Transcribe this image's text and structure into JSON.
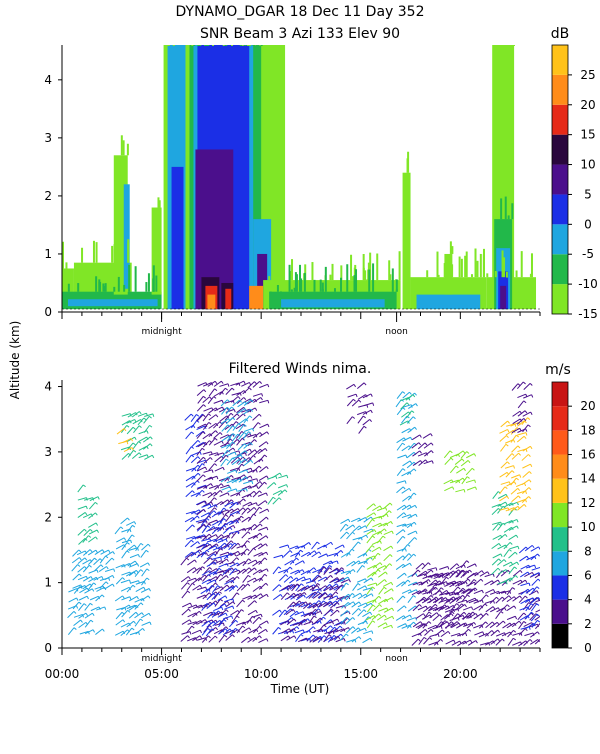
{
  "header": {
    "line1": "DYNAMO_DGAR  18 Dec 11 Day 352",
    "line2": "SNR Beam 3 Azi 133 Elev 90"
  },
  "y_axis_label": "Altitude (km)",
  "x_axis_label": "Time (UT)",
  "chart_data": [
    {
      "type": "heatmap",
      "title": "SNR Beam 3 Azi 133 Elev 90",
      "xlabel": "",
      "ylabel": "Altitude (km)",
      "xlim": [
        0,
        24
      ],
      "ylim": [
        0,
        4.6
      ],
      "y_ticks": [
        "0",
        "1",
        "2",
        "3",
        "4"
      ],
      "x_markers": [
        "midnight",
        "noon"
      ],
      "x_marker_positions": [
        5,
        16.8
      ],
      "colorbar": {
        "unit": "dB",
        "ticks": [
          "-15",
          "-10",
          "-5",
          "0",
          "5",
          "10",
          "15",
          "20",
          "25"
        ],
        "levels": [
          {
            "from": -15,
            "to": -10,
            "color": "#80e626"
          },
          {
            "from": -10,
            "to": -5,
            "color": "#22b84a"
          },
          {
            "from": -5,
            "to": 0,
            "color": "#1fa6e0"
          },
          {
            "from": 0,
            "to": 5,
            "color": "#1b2fe6"
          },
          {
            "from": 5,
            "to": 10,
            "color": "#4b0f8c"
          },
          {
            "from": 10,
            "to": 15,
            "color": "#2a073d"
          },
          {
            "from": 15,
            "to": 20,
            "color": "#e62a18"
          },
          {
            "from": 20,
            "to": 25,
            "color": "#ff8c1a"
          },
          {
            "from": 25,
            "to": 30,
            "color": "#ffc21a"
          }
        ]
      },
      "regions": [
        {
          "t0": 0.0,
          "t1": 0.6,
          "h0": 0.05,
          "h1": 0.75,
          "level": 0
        },
        {
          "t0": 0.6,
          "t1": 3.5,
          "h0": 0.05,
          "h1": 0.85,
          "level": 0
        },
        {
          "t0": 0.0,
          "t1": 5.0,
          "h0": 0.05,
          "h1": 0.35,
          "level": 1
        },
        {
          "t0": 0.3,
          "t1": 4.8,
          "h0": 0.1,
          "h1": 0.22,
          "level": 2
        },
        {
          "t0": 2.6,
          "t1": 3.3,
          "h0": 0.3,
          "h1": 2.7,
          "level": 0
        },
        {
          "t0": 3.1,
          "t1": 3.4,
          "h0": 0.4,
          "h1": 2.2,
          "level": 2
        },
        {
          "t0": 4.5,
          "t1": 5.0,
          "h0": 0.3,
          "h1": 1.8,
          "level": 0
        },
        {
          "t0": 5.1,
          "t1": 6.5,
          "h0": 0.05,
          "h1": 4.6,
          "level": 0
        },
        {
          "t0": 5.3,
          "t1": 6.3,
          "h0": 0.05,
          "h1": 4.6,
          "level": 2
        },
        {
          "t0": 5.5,
          "t1": 6.1,
          "h0": 0.05,
          "h1": 2.5,
          "level": 3
        },
        {
          "t0": 6.2,
          "t1": 11.2,
          "h0": 0.05,
          "h1": 4.6,
          "level": 0
        },
        {
          "t0": 6.4,
          "t1": 10.0,
          "h0": 0.05,
          "h1": 4.6,
          "level": 1
        },
        {
          "t0": 6.6,
          "t1": 9.6,
          "h0": 0.05,
          "h1": 4.6,
          "level": 2
        },
        {
          "t0": 6.8,
          "t1": 9.4,
          "h0": 0.05,
          "h1": 4.6,
          "level": 3
        },
        {
          "t0": 6.7,
          "t1": 8.6,
          "h0": 0.05,
          "h1": 2.8,
          "level": 4
        },
        {
          "t0": 9.6,
          "t1": 10.5,
          "h0": 0.05,
          "h1": 1.6,
          "level": 2
        },
        {
          "t0": 9.8,
          "t1": 10.3,
          "h0": 0.05,
          "h1": 1.0,
          "level": 4
        },
        {
          "t0": 7.0,
          "t1": 7.9,
          "h0": 0.05,
          "h1": 0.6,
          "level": 5
        },
        {
          "t0": 7.2,
          "t1": 7.8,
          "h0": 0.05,
          "h1": 0.45,
          "level": 6
        },
        {
          "t0": 7.3,
          "t1": 7.7,
          "h0": 0.05,
          "h1": 0.3,
          "level": 7
        },
        {
          "t0": 8.0,
          "t1": 8.6,
          "h0": 0.05,
          "h1": 0.5,
          "level": 5
        },
        {
          "t0": 8.2,
          "t1": 8.5,
          "h0": 0.05,
          "h1": 0.4,
          "level": 6
        },
        {
          "t0": 9.4,
          "t1": 10.1,
          "h0": 0.05,
          "h1": 0.45,
          "level": 7
        },
        {
          "t0": 10.1,
          "t1": 17.0,
          "h0": 0.05,
          "h1": 0.55,
          "level": 0
        },
        {
          "t0": 10.4,
          "t1": 16.8,
          "h0": 0.05,
          "h1": 0.35,
          "level": 1
        },
        {
          "t0": 11.0,
          "t1": 16.2,
          "h0": 0.08,
          "h1": 0.22,
          "level": 2
        },
        {
          "t0": 17.1,
          "t1": 17.5,
          "h0": 0.05,
          "h1": 2.4,
          "level": 0
        },
        {
          "t0": 17.5,
          "t1": 21.3,
          "h0": 0.05,
          "h1": 0.6,
          "level": 0
        },
        {
          "t0": 17.8,
          "t1": 21.0,
          "h0": 0.05,
          "h1": 0.3,
          "level": 2
        },
        {
          "t0": 19.2,
          "t1": 19.6,
          "h0": 0.3,
          "h1": 1.0,
          "level": 0
        },
        {
          "t0": 21.3,
          "t1": 23.8,
          "h0": 0.05,
          "h1": 0.6,
          "level": 0
        },
        {
          "t0": 21.6,
          "t1": 22.7,
          "h0": 0.05,
          "h1": 4.6,
          "level": 0
        },
        {
          "t0": 21.7,
          "t1": 22.6,
          "h0": 0.05,
          "h1": 1.6,
          "level": 1
        },
        {
          "t0": 21.8,
          "t1": 22.5,
          "h0": 0.05,
          "h1": 1.1,
          "level": 2
        },
        {
          "t0": 21.9,
          "t1": 22.4,
          "h0": 0.05,
          "h1": 0.7,
          "level": 3
        },
        {
          "t0": 22.0,
          "t1": 22.3,
          "h0": 0.05,
          "h1": 0.45,
          "level": 4
        }
      ]
    },
    {
      "type": "scatter",
      "title": "Filtered Winds nima.",
      "xlabel": "Time (UT)",
      "ylabel": "Altitude (km)",
      "xlim": [
        0,
        24
      ],
      "ylim": [
        0,
        4.1
      ],
      "x_ticks": [
        "00:00",
        "05:00",
        "10:00",
        "15:00",
        "20:00"
      ],
      "x_tick_values": [
        0,
        5,
        10,
        15,
        20
      ],
      "y_ticks": [
        "0",
        "1",
        "2",
        "3",
        "4"
      ],
      "x_markers": [
        "midnight",
        "noon"
      ],
      "x_marker_positions": [
        5,
        16.8
      ],
      "colorbar": {
        "unit": "m/s",
        "ticks": [
          "0",
          "2",
          "4",
          "6",
          "8",
          "10",
          "12",
          "14",
          "16",
          "18",
          "20"
        ],
        "levels": [
          {
            "from": 0,
            "to": 2,
            "color": "#000000"
          },
          {
            "from": 2,
            "to": 4,
            "color": "#4a0f8c"
          },
          {
            "from": 4,
            "to": 6,
            "color": "#1b2fe6"
          },
          {
            "from": 6,
            "to": 8,
            "color": "#1fa6e0"
          },
          {
            "from": 8,
            "to": 10,
            "color": "#22c08a"
          },
          {
            "from": 10,
            "to": 12,
            "color": "#80e626"
          },
          {
            "from": 12,
            "to": 14,
            "color": "#ffc21a"
          },
          {
            "from": 14,
            "to": 16,
            "color": "#ff8c1a"
          },
          {
            "from": 16,
            "to": 18,
            "color": "#ff5a1a"
          },
          {
            "from": 18,
            "to": 20,
            "color": "#e62a18"
          },
          {
            "from": 20,
            "to": 22,
            "color": "#c81414"
          }
        ]
      },
      "barb_regions": [
        {
          "t0": 0.3,
          "t1": 1.9,
          "h0": 0.2,
          "h1": 0.9,
          "speed": 7
        },
        {
          "t0": 0.5,
          "t1": 2.2,
          "h0": 0.9,
          "h1": 1.5,
          "speed": 7
        },
        {
          "t0": 0.8,
          "t1": 1.6,
          "h0": 1.6,
          "h1": 2.5,
          "speed": 9
        },
        {
          "t0": 2.7,
          "t1": 3.5,
          "h0": 0.2,
          "h1": 1.9,
          "speed": 7
        },
        {
          "t0": 3.4,
          "t1": 4.1,
          "h0": 0.2,
          "h1": 1.6,
          "speed": 6
        },
        {
          "t0": 3.0,
          "t1": 4.2,
          "h0": 2.9,
          "h1": 3.6,
          "speed": 9
        },
        {
          "t0": 2.8,
          "t1": 3.1,
          "h0": 3.0,
          "h1": 3.3,
          "speed": 13
        },
        {
          "t0": 6.0,
          "t1": 6.8,
          "h0": 0.1,
          "h1": 1.4,
          "speed": 3
        },
        {
          "t0": 6.2,
          "t1": 7.0,
          "h0": 1.4,
          "h1": 3.6,
          "speed": 4
        },
        {
          "t0": 6.8,
          "t1": 10.1,
          "h0": 0.1,
          "h1": 4.0,
          "speed": 3
        },
        {
          "t0": 7.0,
          "t1": 8.5,
          "h0": 0.2,
          "h1": 2.2,
          "speed": 4
        },
        {
          "t0": 8.0,
          "t1": 9.3,
          "h0": 2.4,
          "h1": 3.8,
          "speed": 7
        },
        {
          "t0": 10.3,
          "t1": 11.0,
          "h0": 2.2,
          "h1": 2.6,
          "speed": 8
        },
        {
          "t0": 10.6,
          "t1": 13.9,
          "h0": 0.1,
          "h1": 1.6,
          "speed": 5
        },
        {
          "t0": 11.0,
          "t1": 12.5,
          "h0": 0.1,
          "h1": 0.9,
          "speed": 3
        },
        {
          "t0": 12.6,
          "t1": 14.0,
          "h0": 0.1,
          "h1": 1.2,
          "speed": 2
        },
        {
          "t0": 14.0,
          "t1": 15.3,
          "h0": 0.1,
          "h1": 2.0,
          "speed": 6
        },
        {
          "t0": 15.3,
          "t1": 16.2,
          "h0": 0.3,
          "h1": 2.2,
          "speed": 10
        },
        {
          "t0": 14.3,
          "t1": 15.3,
          "h0": 3.3,
          "h1": 4.0,
          "speed": 3
        },
        {
          "t0": 16.8,
          "t1": 17.6,
          "h0": 0.3,
          "h1": 3.9,
          "speed": 6
        },
        {
          "t0": 17.0,
          "t1": 17.4,
          "h0": 3.4,
          "h1": 3.8,
          "speed": 8
        },
        {
          "t0": 17.6,
          "t1": 18.4,
          "h0": 2.8,
          "h1": 3.2,
          "speed": 3
        },
        {
          "t0": 19.2,
          "t1": 20.4,
          "h0": 2.4,
          "h1": 3.0,
          "speed": 10
        },
        {
          "t0": 17.6,
          "t1": 23.9,
          "h0": 0.05,
          "h1": 1.1,
          "speed": 2
        },
        {
          "t0": 17.8,
          "t1": 20.5,
          "h0": 0.3,
          "h1": 1.3,
          "speed": 3
        },
        {
          "t0": 21.6,
          "t1": 22.6,
          "h0": 1.0,
          "h1": 2.4,
          "speed": 8
        },
        {
          "t0": 22.0,
          "t1": 23.3,
          "h0": 2.1,
          "h1": 3.5,
          "speed": 12
        },
        {
          "t0": 22.6,
          "t1": 23.3,
          "h0": 3.3,
          "h1": 4.0,
          "speed": 3
        },
        {
          "t0": 23.0,
          "t1": 23.8,
          "h0": 0.3,
          "h1": 1.5,
          "speed": 5
        }
      ]
    }
  ]
}
